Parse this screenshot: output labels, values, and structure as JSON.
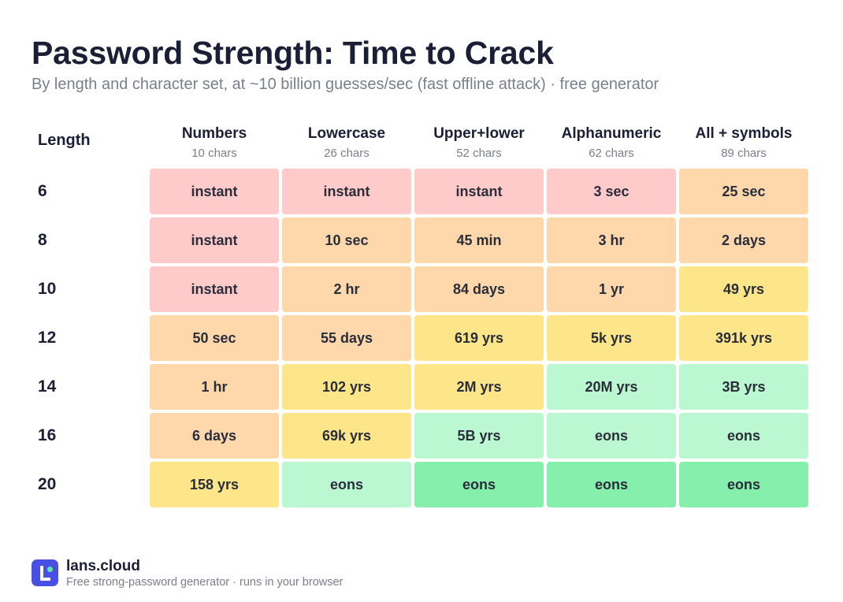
{
  "title": "Password Strength: Time to Crack",
  "subtitle": "By length and character set, at ~10 billion guesses/sec (fast offline attack) · free generator",
  "colors": {
    "instant": "#fecaca",
    "moderate": "#fed7aa",
    "strong": "#fde68a",
    "very_strong": "#bbf7d0",
    "uncrackable": "#86efac",
    "brand": "#4a4fe4",
    "brand_dot": "#5ee7a8"
  },
  "chart_data": {
    "type": "table",
    "row_header": "Length",
    "columns": [
      {
        "name": "Numbers",
        "sub": "10 chars"
      },
      {
        "name": "Lowercase",
        "sub": "26 chars"
      },
      {
        "name": "Upper+lower",
        "sub": "52 chars"
      },
      {
        "name": "Alphanumeric",
        "sub": "62 chars"
      },
      {
        "name": "All + symbols",
        "sub": "89 chars"
      }
    ],
    "rows": [
      {
        "length": "6",
        "values": [
          "instant",
          "instant",
          "instant",
          "3 sec",
          "25 sec"
        ],
        "tiers": [
          "instant",
          "instant",
          "instant",
          "instant",
          "moderate"
        ]
      },
      {
        "length": "8",
        "values": [
          "instant",
          "10 sec",
          "45 min",
          "3 hr",
          "2 days"
        ],
        "tiers": [
          "instant",
          "moderate",
          "moderate",
          "moderate",
          "moderate"
        ]
      },
      {
        "length": "10",
        "values": [
          "instant",
          "2 hr",
          "84 days",
          "1 yr",
          "49 yrs"
        ],
        "tiers": [
          "instant",
          "moderate",
          "moderate",
          "moderate",
          "strong"
        ]
      },
      {
        "length": "12",
        "values": [
          "50 sec",
          "55 days",
          "619 yrs",
          "5k yrs",
          "391k yrs"
        ],
        "tiers": [
          "moderate",
          "moderate",
          "strong",
          "strong",
          "strong"
        ]
      },
      {
        "length": "14",
        "values": [
          "1 hr",
          "102 yrs",
          "2M yrs",
          "20M yrs",
          "3B yrs"
        ],
        "tiers": [
          "moderate",
          "strong",
          "strong",
          "very_strong",
          "very_strong"
        ]
      },
      {
        "length": "16",
        "values": [
          "6 days",
          "69k yrs",
          "5B yrs",
          "eons",
          "eons"
        ],
        "tiers": [
          "moderate",
          "strong",
          "very_strong",
          "very_strong",
          "very_strong"
        ]
      },
      {
        "length": "20",
        "values": [
          "158 yrs",
          "eons",
          "eons",
          "eons",
          "eons"
        ],
        "tiers": [
          "strong",
          "very_strong",
          "uncrackable",
          "uncrackable",
          "uncrackable"
        ]
      }
    ]
  },
  "footer": {
    "brand": "lans.cloud",
    "tagline": "Free strong-password generator · runs in your browser",
    "logo_icon": "lans-logo-icon"
  }
}
